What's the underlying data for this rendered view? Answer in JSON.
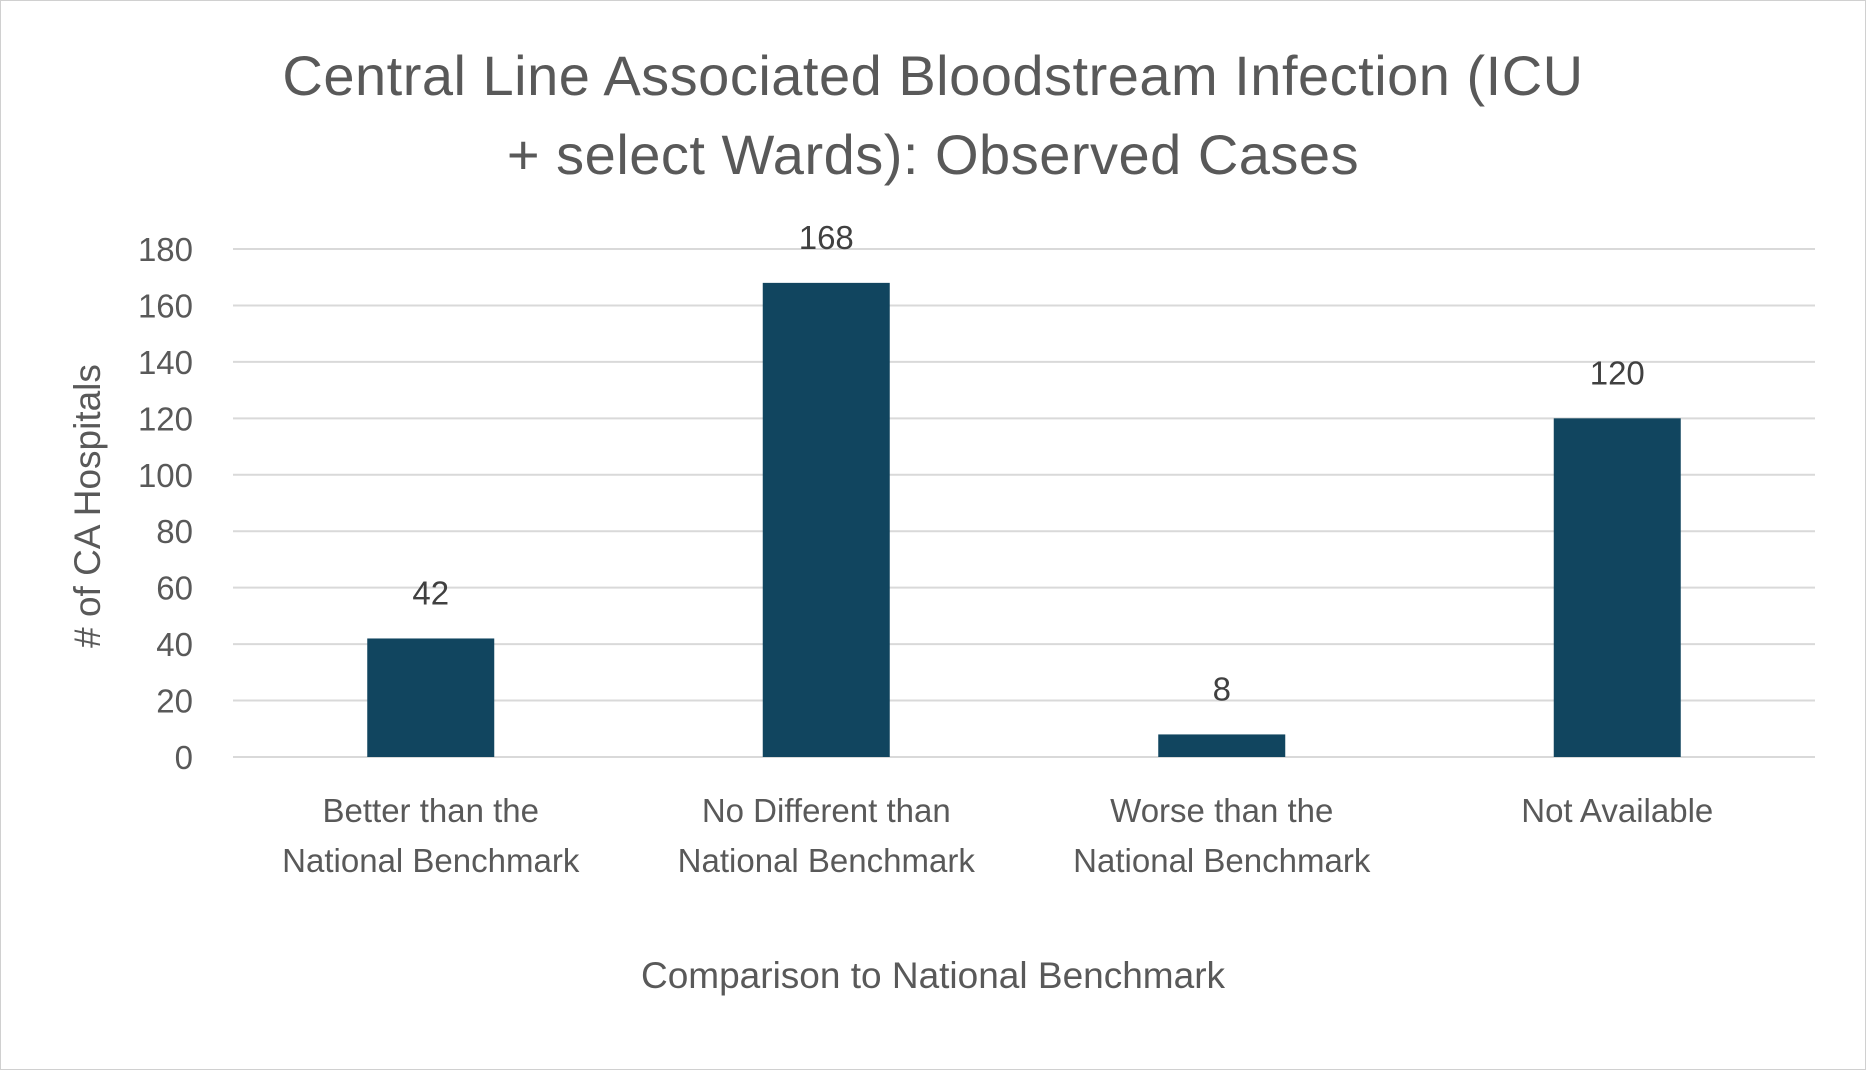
{
  "chart_data": {
    "type": "bar",
    "title": "Central Line Associated Bloodstream Infection (ICU + select Wards): Observed Cases",
    "title_lines": [
      "Central Line Associated Bloodstream Infection (ICU",
      "+ select Wards): Observed Cases"
    ],
    "xlabel": "Comparison to National Benchmark",
    "ylabel": "# of CA Hospitals",
    "categories": [
      [
        "Better than the",
        "National Benchmark"
      ],
      [
        "No Different than",
        "National Benchmark"
      ],
      [
        "Worse than the",
        "National Benchmark"
      ],
      [
        "Not Available"
      ]
    ],
    "values": [
      42,
      168,
      8,
      120
    ],
    "data_labels": [
      "42",
      "168",
      "8",
      "120"
    ],
    "ylim": [
      0,
      180
    ],
    "yticks": [
      0,
      20,
      40,
      60,
      80,
      100,
      120,
      140,
      160,
      180
    ],
    "grid": true,
    "legend": "none",
    "bar_color": "#11455f",
    "gridline_color": "#d9d9d9",
    "text_color": "#595959"
  }
}
